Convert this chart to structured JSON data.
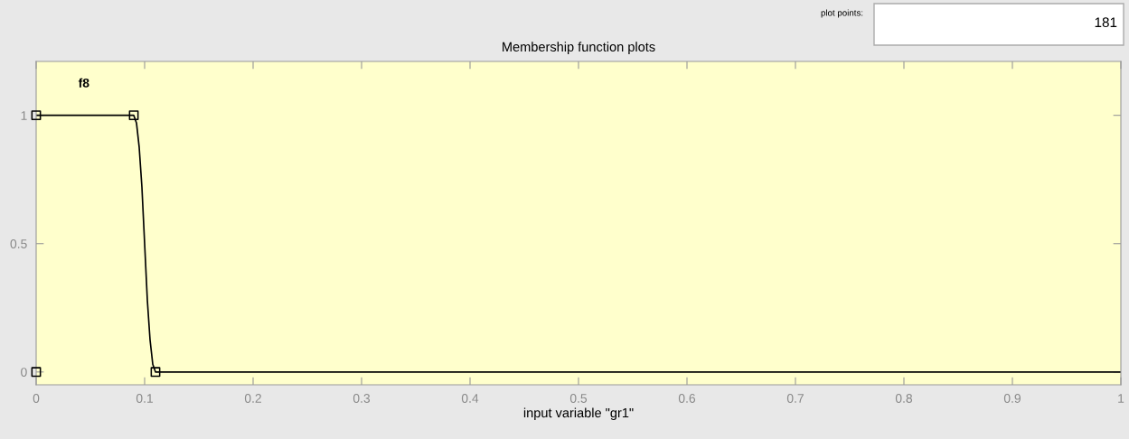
{
  "chart_data": {
    "type": "line",
    "title": "Membership function plots",
    "xlabel": "input variable \"gr1\"",
    "xlim": [
      0,
      1
    ],
    "ylim": [
      -0.05,
      1.21
    ],
    "xticks": [
      0,
      0.1,
      0.2,
      0.3,
      0.4,
      0.5,
      0.6,
      0.7,
      0.8,
      0.9,
      1
    ],
    "yticks": [
      0,
      0.5,
      1
    ],
    "grid": false,
    "legend": false,
    "series": [
      {
        "color": "#000000",
        "marker": "none",
        "x": [
          0,
          0.09,
          0.0925,
          0.095,
          0.0975,
          0.1,
          0.1025,
          0.105,
          0.1075,
          0.11,
          1
        ],
        "values": [
          1,
          1,
          0.97,
          0.875,
          0.72,
          0.5,
          0.28,
          0.125,
          0.03,
          0,
          0
        ]
      },
      {
        "type": "scatter",
        "color": "#000000",
        "marker": "square",
        "x": [
          0,
          0.09,
          0,
          0.11
        ],
        "values": [
          1,
          1,
          0,
          0
        ]
      }
    ],
    "annotations": [
      "f8",
      "plot points:",
      "181"
    ]
  }
}
